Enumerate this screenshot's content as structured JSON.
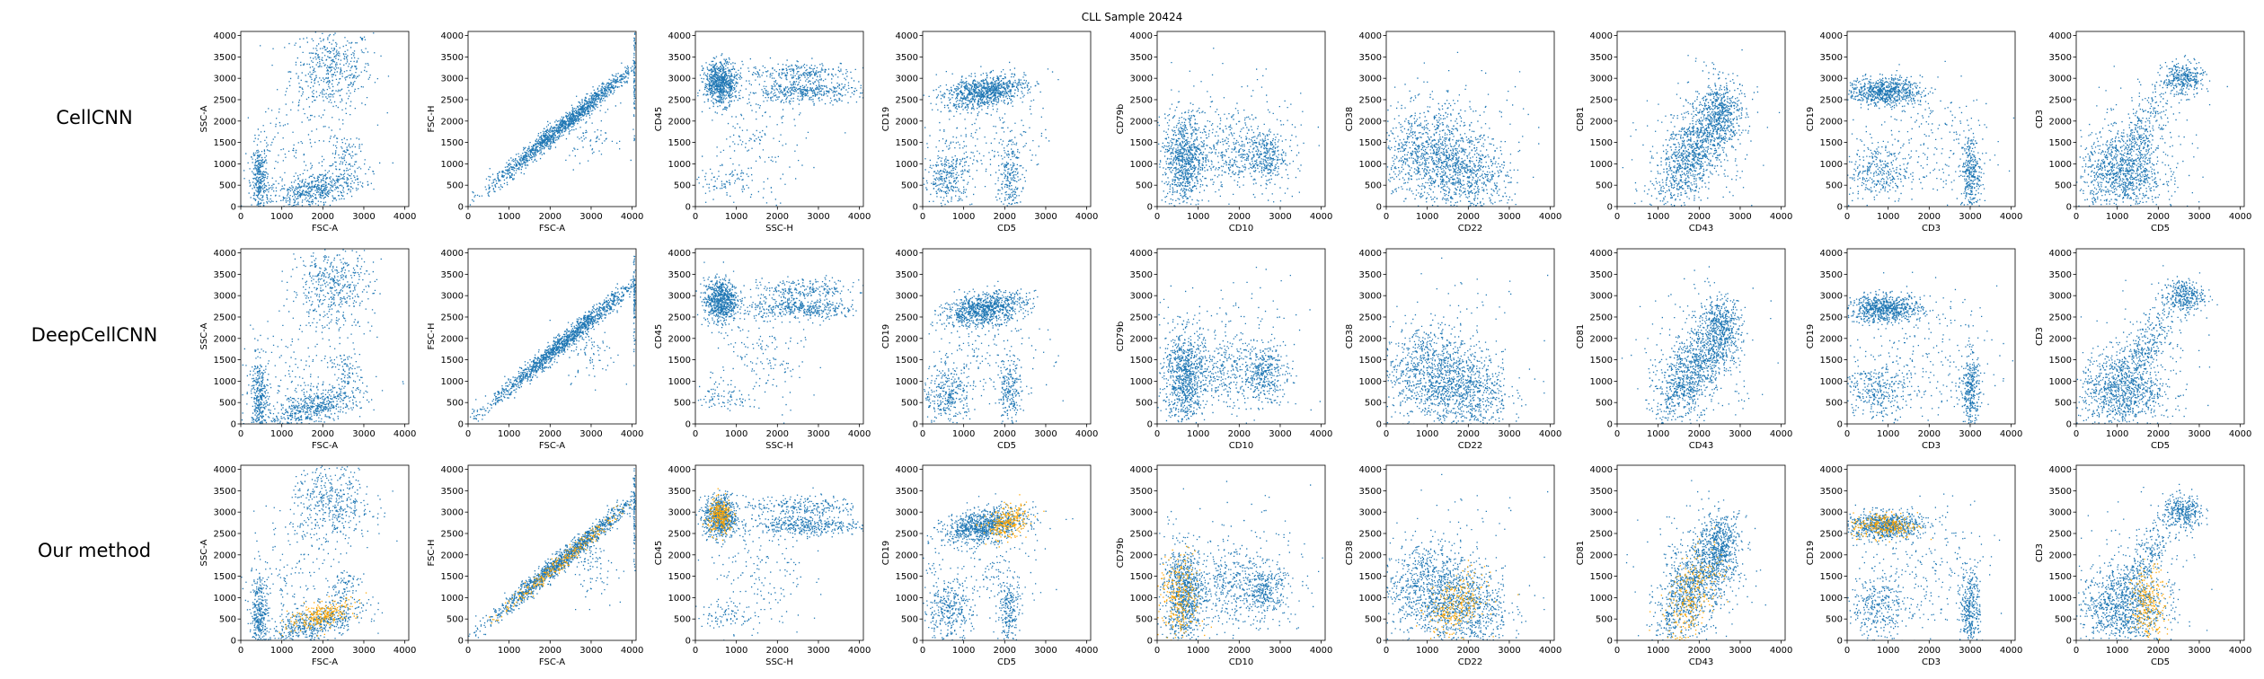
{
  "title": "CLL Sample 20424",
  "row_labels": [
    "CellCNN",
    "DeepCellCNN",
    "Our method"
  ],
  "colors": {
    "cells": "#1f77b4",
    "selected": "#ffa500"
  },
  "chart_data": {
    "type": "scatter",
    "title": "CLL Sample 20424",
    "rows": [
      "CellCNN",
      "DeepCellCNN",
      "Our method"
    ],
    "xlim": [
      0,
      4096
    ],
    "ylim": [
      0,
      4096
    ],
    "xticks": [
      0,
      1000,
      2000,
      3000,
      4000
    ],
    "yticks": [
      0,
      500,
      1000,
      1500,
      2000,
      2500,
      3000,
      3500,
      4000
    ],
    "grid": false,
    "panels": [
      {
        "xlabel": "FSC-A",
        "ylabel": "SSC-A",
        "clusters": [
          {
            "cx": 2200,
            "cy": 3200,
            "sx": 500,
            "sy": 500,
            "w": 0.3
          },
          {
            "cx": 1800,
            "cy": 400,
            "sx": 600,
            "sy": 200,
            "w": 0.35,
            "slope": 0.25
          },
          {
            "cx": 450,
            "cy": 600,
            "sx": 100,
            "sy": 450,
            "w": 0.2
          },
          {
            "cx": 2500,
            "cy": 1300,
            "sx": 200,
            "sy": 200,
            "w": 0.05
          },
          {
            "cx": 1000,
            "cy": 1200,
            "sx": 700,
            "sy": 700,
            "w": 0.1
          }
        ],
        "highlight": [
          {
            "cx": 2000,
            "cy": 620,
            "sx": 420,
            "sy": 140,
            "slope": 0.25
          }
        ]
      },
      {
        "xlabel": "FSC-A",
        "ylabel": "FSC-H",
        "clusters": [
          {
            "cx": 2300,
            "cy": 1900,
            "sx": 900,
            "sy": 120,
            "w": 0.9,
            "slope": 0.8
          },
          {
            "cx": 3000,
            "cy": 1700,
            "sx": 300,
            "sy": 350,
            "w": 0.05
          },
          {
            "cx": 4040,
            "cy": 3000,
            "sx": 10,
            "sy": 600,
            "w": 0.05
          }
        ],
        "highlight": [
          {
            "cx": 2200,
            "cy": 1800,
            "sx": 700,
            "sy": 100,
            "slope": 0.8
          }
        ]
      },
      {
        "xlabel": "SSC-H",
        "ylabel": "CD45",
        "clusters": [
          {
            "cx": 600,
            "cy": 2900,
            "sx": 200,
            "sy": 250,
            "w": 0.45
          },
          {
            "cx": 2600,
            "cy": 2700,
            "sx": 700,
            "sy": 120,
            "w": 0.25
          },
          {
            "cx": 2600,
            "cy": 3150,
            "sx": 700,
            "sy": 120,
            "w": 0.15
          },
          {
            "cx": 700,
            "cy": 600,
            "sx": 350,
            "sy": 150,
            "w": 0.05
          },
          {
            "cx": 1500,
            "cy": 1500,
            "sx": 600,
            "sy": 700,
            "w": 0.1
          }
        ],
        "highlight": [
          {
            "cx": 600,
            "cy": 2900,
            "sx": 150,
            "sy": 200
          }
        ]
      },
      {
        "xlabel": "CD5",
        "ylabel": "CD19",
        "clusters": [
          {
            "cx": 1500,
            "cy": 2700,
            "sx": 500,
            "sy": 180,
            "w": 0.55,
            "slope": 0.15
          },
          {
            "cx": 600,
            "cy": 700,
            "sx": 300,
            "sy": 350,
            "w": 0.2
          },
          {
            "cx": 2100,
            "cy": 700,
            "sx": 150,
            "sy": 450,
            "w": 0.15
          },
          {
            "cx": 1500,
            "cy": 1800,
            "sx": 800,
            "sy": 600,
            "w": 0.1
          }
        ],
        "highlight": [
          {
            "cx": 2050,
            "cy": 2750,
            "sx": 250,
            "sy": 180,
            "slope": 0.25
          }
        ]
      },
      {
        "xlabel": "CD10",
        "ylabel": "CD79b",
        "clusters": [
          {
            "cx": 650,
            "cy": 1100,
            "sx": 250,
            "sy": 550,
            "w": 0.5
          },
          {
            "cx": 2600,
            "cy": 1200,
            "sx": 250,
            "sy": 300,
            "w": 0.2
          },
          {
            "cx": 1700,
            "cy": 1300,
            "sx": 400,
            "sy": 400,
            "w": 0.15
          },
          {
            "cx": 1800,
            "cy": 1500,
            "sx": 1000,
            "sy": 900,
            "w": 0.15
          }
        ],
        "highlight": [
          {
            "cx": 550,
            "cy": 1000,
            "sx": 250,
            "sy": 500
          }
        ]
      },
      {
        "xlabel": "CD22",
        "ylabel": "CD38",
        "clusters": [
          {
            "cx": 1000,
            "cy": 1200,
            "sx": 600,
            "sy": 550,
            "w": 0.55
          },
          {
            "cx": 2000,
            "cy": 700,
            "sx": 500,
            "sy": 450,
            "w": 0.35
          },
          {
            "cx": 1800,
            "cy": 1600,
            "sx": 900,
            "sy": 900,
            "w": 0.1
          }
        ],
        "highlight": [
          {
            "cx": 1700,
            "cy": 800,
            "sx": 350,
            "sy": 350,
            "slope": 0.4
          }
        ]
      },
      {
        "xlabel": "CD43",
        "ylabel": "CD81",
        "clusters": [
          {
            "cx": 1800,
            "cy": 1200,
            "sx": 450,
            "sy": 500,
            "w": 0.55,
            "slope": 0.9
          },
          {
            "cx": 2500,
            "cy": 2200,
            "sx": 250,
            "sy": 400,
            "w": 0.3
          },
          {
            "cx": 2000,
            "cy": 1500,
            "sx": 700,
            "sy": 800,
            "w": 0.15
          }
        ],
        "highlight": [
          {
            "cx": 1850,
            "cy": 1100,
            "sx": 350,
            "sy": 450,
            "slope": 0.9
          }
        ]
      },
      {
        "xlabel": "CD3",
        "ylabel": "CD19",
        "clusters": [
          {
            "cx": 900,
            "cy": 2700,
            "sx": 450,
            "sy": 160,
            "w": 0.45
          },
          {
            "cx": 700,
            "cy": 800,
            "sx": 400,
            "sy": 350,
            "w": 0.2
          },
          {
            "cx": 3000,
            "cy": 800,
            "sx": 120,
            "sy": 450,
            "w": 0.2
          },
          {
            "cx": 1800,
            "cy": 1500,
            "sx": 900,
            "sy": 800,
            "w": 0.15
          }
        ],
        "highlight": [
          {
            "cx": 900,
            "cy": 2700,
            "sx": 400,
            "sy": 150
          }
        ]
      },
      {
        "xlabel": "CD5",
        "ylabel": "CD3",
        "clusters": [
          {
            "cx": 1100,
            "cy": 800,
            "sx": 500,
            "sy": 450,
            "w": 0.55
          },
          {
            "cx": 2600,
            "cy": 3000,
            "sx": 250,
            "sy": 200,
            "w": 0.2
          },
          {
            "cx": 1700,
            "cy": 1900,
            "sx": 350,
            "sy": 350,
            "w": 0.15,
            "slope": 1.0
          },
          {
            "cx": 1500,
            "cy": 1400,
            "sx": 700,
            "sy": 800,
            "w": 0.1
          }
        ],
        "highlight": [
          {
            "cx": 1750,
            "cy": 800,
            "sx": 200,
            "sy": 450
          }
        ]
      }
    ],
    "highlight_rows": [
      2
    ]
  }
}
